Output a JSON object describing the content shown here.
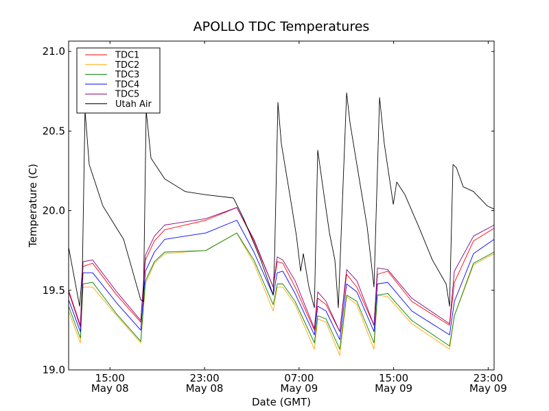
{
  "chart_data": {
    "type": "line",
    "title": "APOLLO TDC Temperatures",
    "xlabel": "Date (GMT)",
    "ylabel": "Temperature (C)",
    "x_units": "hours since May 08 00:00 GMT",
    "xlim": [
      11.5,
      47.5
    ],
    "ylim": [
      19.0,
      21.065
    ],
    "grid": false,
    "legend_position": "top-left",
    "yticks": [
      {
        "value": 19.0,
        "label": "19.0"
      },
      {
        "value": 19.5,
        "label": "19.5"
      },
      {
        "value": 20.0,
        "label": "20.0"
      },
      {
        "value": 20.5,
        "label": "20.5"
      },
      {
        "value": 21.0,
        "label": "21.0"
      }
    ],
    "xticks": [
      {
        "value": 15,
        "label_time": "15:00",
        "label_date": "May 08"
      },
      {
        "value": 23,
        "label_time": "23:00",
        "label_date": "May 08"
      },
      {
        "value": 31,
        "label_time": "07:00",
        "label_date": "May 09"
      },
      {
        "value": 39,
        "label_time": "15:00",
        "label_date": "May 09"
      },
      {
        "value": 47,
        "label_time": "23:00",
        "label_date": "May 09"
      }
    ],
    "tdc_x": [
      11.5,
      12.49,
      12.72,
      13.53,
      15.57,
      17.6,
      18.0,
      18.76,
      19.63,
      23.11,
      25.73,
      27.18,
      28.81,
      29.15,
      29.62,
      30.66,
      32.29,
      32.58,
      33.28,
      34.44,
      35.02,
      35.89,
      37.34,
      37.63,
      38.5,
      40.54,
      43.73,
      44.14,
      45.76,
      47.5
    ],
    "series": [
      {
        "name": "TDC1",
        "color": "#ff0000",
        "values": [
          19.5,
          19.28,
          19.65,
          19.67,
          19.47,
          19.3,
          19.69,
          19.81,
          19.88,
          19.94,
          20.02,
          19.81,
          19.52,
          19.68,
          19.67,
          19.52,
          19.25,
          19.45,
          19.41,
          19.24,
          19.6,
          19.52,
          19.28,
          19.6,
          19.62,
          19.43,
          19.28,
          19.55,
          19.81,
          19.89
        ]
      },
      {
        "name": "TDC2",
        "color": "#ffa500",
        "values": [
          19.37,
          19.17,
          19.52,
          19.52,
          19.34,
          19.17,
          19.54,
          19.67,
          19.73,
          19.75,
          19.86,
          19.67,
          19.37,
          19.52,
          19.52,
          19.41,
          19.13,
          19.32,
          19.3,
          19.09,
          19.46,
          19.41,
          19.13,
          19.47,
          19.46,
          19.29,
          19.13,
          19.34,
          19.66,
          19.73
        ]
      },
      {
        "name": "TDC3",
        "color": "#008000",
        "values": [
          19.4,
          19.2,
          19.54,
          19.55,
          19.35,
          19.18,
          19.56,
          19.68,
          19.74,
          19.75,
          19.86,
          19.69,
          19.41,
          19.54,
          19.54,
          19.43,
          19.17,
          19.34,
          19.32,
          19.13,
          19.47,
          19.43,
          19.17,
          19.47,
          19.48,
          19.31,
          19.15,
          19.34,
          19.67,
          19.74
        ]
      },
      {
        "name": "TDC4",
        "color": "#0000ff",
        "values": [
          19.44,
          19.24,
          19.61,
          19.61,
          19.42,
          19.25,
          19.62,
          19.74,
          19.82,
          19.86,
          19.94,
          19.74,
          19.47,
          19.61,
          19.62,
          19.48,
          19.22,
          19.4,
          19.37,
          19.19,
          19.54,
          19.49,
          19.24,
          19.54,
          19.55,
          19.37,
          19.22,
          19.43,
          19.73,
          19.82
        ]
      },
      {
        "name": "TDC5",
        "color": "#800080",
        "values": [
          19.49,
          19.27,
          19.68,
          19.69,
          19.49,
          19.31,
          19.72,
          19.84,
          19.91,
          19.95,
          20.02,
          19.82,
          19.52,
          19.71,
          19.69,
          19.56,
          19.26,
          19.49,
          19.43,
          19.24,
          19.63,
          19.56,
          19.28,
          19.64,
          19.63,
          19.45,
          19.29,
          19.62,
          19.84,
          19.91
        ]
      },
      {
        "name": "Utah Air",
        "color": "#000000",
        "x": [
          11.5,
          12.43,
          12.66,
          12.89,
          13.24,
          14.4,
          16.15,
          17.6,
          17.83,
          18.06,
          18.47,
          19.63,
          21.37,
          23.11,
          25.44,
          26.31,
          27.76,
          28.81,
          28.92,
          29.21,
          29.5,
          30.37,
          30.78,
          31.13,
          31.36,
          31.83,
          32.29,
          32.58,
          32.99,
          33.57,
          34.03,
          34.32,
          35.02,
          35.31,
          35.89,
          36.76,
          37.34,
          37.81,
          38.21,
          38.97,
          39.26,
          39.96,
          41.12,
          42.28,
          43.44,
          43.73,
          44.02,
          44.31,
          44.89,
          45.76,
          46.92,
          47.5
        ],
        "values": [
          19.77,
          19.4,
          19.62,
          20.63,
          20.29,
          20.03,
          19.82,
          19.44,
          19.43,
          20.63,
          20.33,
          20.2,
          20.12,
          20.1,
          20.08,
          19.95,
          19.69,
          19.47,
          19.69,
          20.68,
          20.42,
          20.03,
          19.84,
          19.62,
          19.73,
          19.52,
          19.39,
          20.38,
          20.16,
          19.86,
          19.69,
          19.39,
          20.74,
          20.55,
          20.29,
          19.9,
          19.52,
          20.71,
          20.42,
          20.04,
          20.18,
          20.1,
          19.9,
          19.69,
          19.54,
          19.4,
          20.29,
          20.27,
          20.15,
          20.12,
          20.03,
          20.01
        ]
      }
    ]
  }
}
